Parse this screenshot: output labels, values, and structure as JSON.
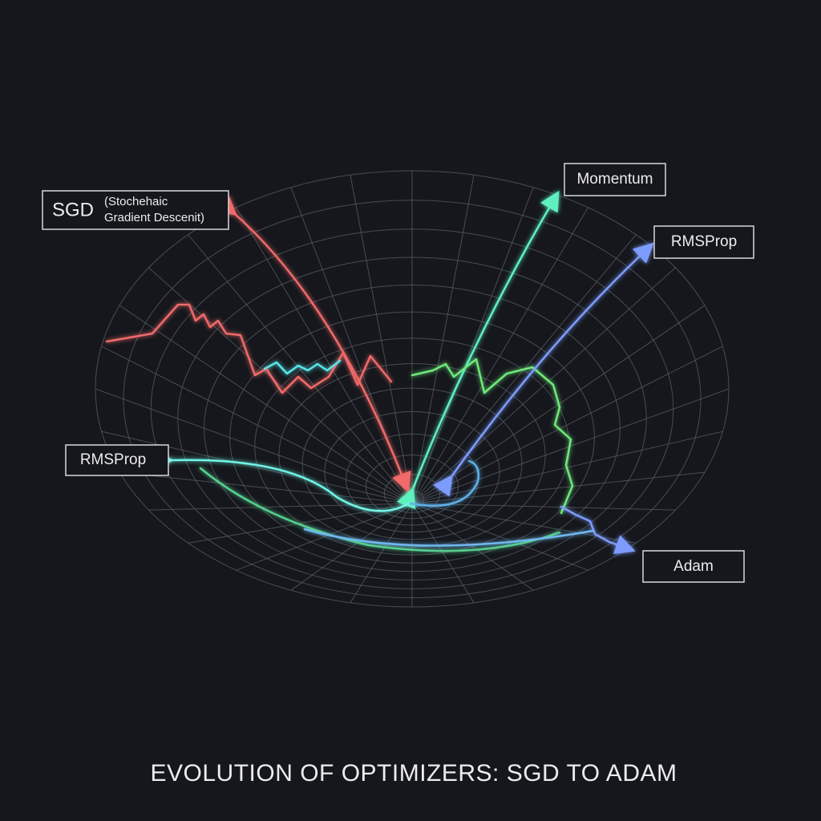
{
  "title": "EVOLUTION OF OPTIMIZERS: SGD TO ADAM",
  "labels": {
    "sgd": {
      "name": "SGD",
      "note_lines": [
        "(Stochehaic",
        "Gradient Descenit)"
      ]
    },
    "momentum": "Momentum",
    "rmsprop_right": "RMSProp",
    "rmsprop_left": "RMSProp",
    "adam": "Adam"
  }
}
